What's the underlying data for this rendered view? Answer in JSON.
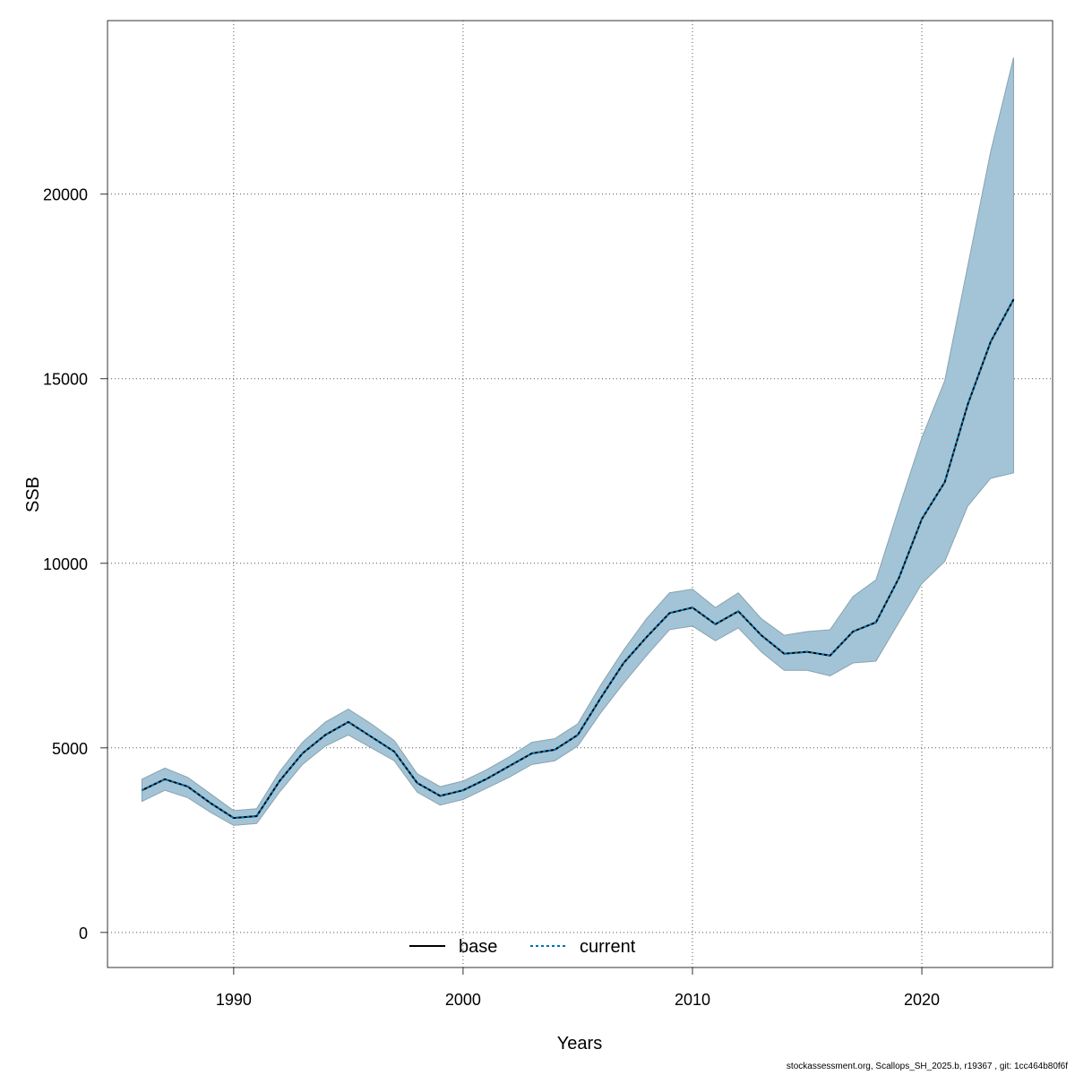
{
  "chart_data": {
    "type": "line",
    "xlabel": "Years",
    "ylabel": "SSB",
    "xlim": [
      1984.5,
      2025.7
    ],
    "ylim": [
      -950,
      24700
    ],
    "x_ticks": [
      1990,
      2000,
      2010,
      2020
    ],
    "y_ticks": [
      0,
      5000,
      10000,
      15000,
      20000
    ],
    "grid": true,
    "legend_position": "bottom-center",
    "x": [
      1986,
      1987,
      1988,
      1989,
      1990,
      1991,
      1992,
      1993,
      1994,
      1995,
      1996,
      1997,
      1998,
      1999,
      2000,
      2001,
      2002,
      2003,
      2004,
      2005,
      2006,
      2007,
      2008,
      2009,
      2010,
      2011,
      2012,
      2013,
      2014,
      2015,
      2016,
      2017,
      2018,
      2019,
      2020,
      2021,
      2022,
      2023,
      2024
    ],
    "series": [
      {
        "name": "base",
        "values": [
          3850,
          4150,
          3950,
          3500,
          3100,
          3150,
          4100,
          4850,
          5350,
          5700,
          5300,
          4900,
          4050,
          3700,
          3850,
          4150,
          4500,
          4850,
          4950,
          5350,
          6350,
          7300,
          8000,
          8650,
          8800,
          8350,
          8700,
          8050,
          7550,
          7600,
          7500,
          8150,
          8400,
          9600,
          11200,
          12200,
          14300,
          16000,
          17150
        ]
      },
      {
        "name": "current",
        "values": [
          3850,
          4150,
          3950,
          3500,
          3100,
          3150,
          4100,
          4850,
          5350,
          5700,
          5300,
          4900,
          4050,
          3700,
          3850,
          4150,
          4500,
          4850,
          4950,
          5350,
          6350,
          7300,
          8000,
          8650,
          8800,
          8350,
          8700,
          8050,
          7550,
          7600,
          7500,
          8150,
          8400,
          9600,
          11200,
          12200,
          14300,
          16000,
          17150
        ]
      }
    ],
    "confidence_band": {
      "lower": [
        3550,
        3850,
        3650,
        3250,
        2900,
        2950,
        3800,
        4550,
        5050,
        5350,
        5000,
        4650,
        3800,
        3450,
        3600,
        3900,
        4200,
        4550,
        4650,
        5050,
        5950,
        6750,
        7500,
        8200,
        8300,
        7900,
        8250,
        7600,
        7100,
        7100,
        6950,
        7300,
        7350,
        8400,
        9450,
        10050,
        11550,
        12300,
        12450
      ],
      "upper": [
        4150,
        4450,
        4200,
        3750,
        3300,
        3350,
        4350,
        5150,
        5700,
        6050,
        5650,
        5200,
        4300,
        3950,
        4100,
        4400,
        4750,
        5150,
        5250,
        5650,
        6700,
        7650,
        8500,
        9200,
        9300,
        8800,
        9200,
        8500,
        8050,
        8150,
        8200,
        9100,
        9550,
        11500,
        13400,
        14950,
        18050,
        21150,
        23700
      ]
    },
    "colors": {
      "band_fill": "#a2c4d6",
      "band_edge": "#8aa3b0",
      "base_line": "#000000",
      "current_line": "#0072b2",
      "grid": "#555555",
      "axis": "#333333"
    }
  },
  "footer": {
    "note": "stockassessment.org, Scallops_SH_2025.b, r19367 , git: 1cc464b80f6f"
  }
}
